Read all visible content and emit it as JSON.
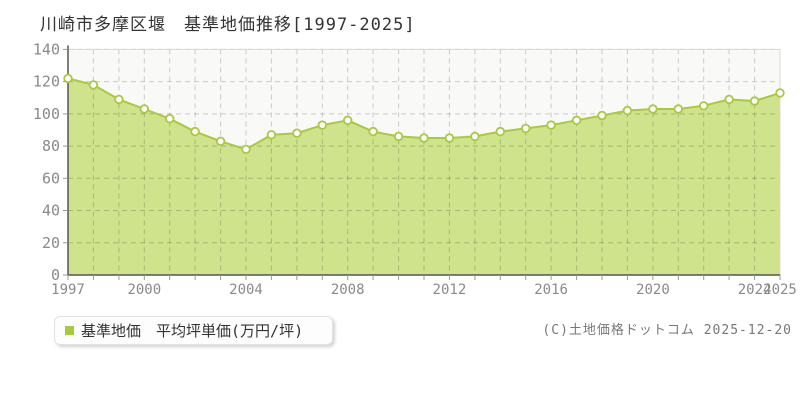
{
  "page": {
    "title": "川崎市多摩区堰　基準地価推移[1997-2025]",
    "footer": "(C)土地価格ドットコム 2025-12-20"
  },
  "legend": {
    "label": "基準地価　平均坪単価(万円/坪)"
  },
  "chart_data": {
    "type": "area",
    "title": "川崎市多摩区堰 基準地価推移[1997-2025]",
    "series_name": "基準地価 平均坪単価(万円/坪)",
    "x": [
      1997,
      1998,
      1999,
      2000,
      2001,
      2002,
      2003,
      2004,
      2005,
      2006,
      2007,
      2008,
      2009,
      2010,
      2011,
      2012,
      2013,
      2014,
      2015,
      2016,
      2017,
      2018,
      2019,
      2020,
      2021,
      2022,
      2023,
      2024,
      2025
    ],
    "values": [
      122,
      118,
      109,
      103,
      97,
      89,
      83,
      78,
      87,
      88,
      93,
      96,
      89,
      86,
      85,
      85,
      86,
      89,
      91,
      93,
      96,
      99,
      102,
      103,
      103,
      105,
      109,
      108,
      113
    ],
    "ylabel": "万円/坪",
    "ylim": [
      0,
      140
    ],
    "ytick_step": 20,
    "yticks": [
      0,
      20,
      40,
      60,
      80,
      100,
      120,
      140
    ],
    "xticks": [
      1997,
      2000,
      2004,
      2008,
      2012,
      2016,
      2020,
      2024,
      2025
    ],
    "grid": true,
    "legend_position": "bottom-left",
    "colors": {
      "area": "#cfe28c",
      "line": "#a9c93f",
      "marker_fill": "#ffffff",
      "grid": "rgba(0,0,0,0.19)",
      "axis": "#555555",
      "border": "#d9d9d9",
      "tick": "#999999",
      "tick_label": "#8a8a8a"
    }
  }
}
